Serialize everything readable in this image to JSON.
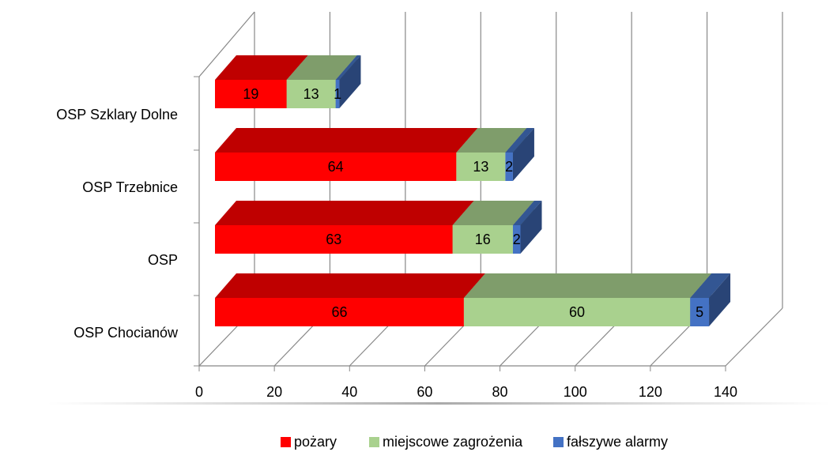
{
  "chart_data": {
    "type": "bar3d_stacked_horizontal",
    "categories": [
      "OSP Chocianów",
      "OSP",
      "OSP Trzebnice",
      "OSP Szklary Dolne"
    ],
    "series": [
      {
        "name": "pożary",
        "color": "#ff0000",
        "values": [
          66,
          63,
          64,
          19
        ]
      },
      {
        "name": "miejscowe zagrożenia",
        "color": "#a9d18e",
        "values": [
          60,
          16,
          13,
          13
        ]
      },
      {
        "name": "fałszywe alarmy",
        "color": "#4472c4",
        "values": [
          5,
          2,
          2,
          1
        ]
      }
    ],
    "xlim": [
      0,
      140
    ],
    "xticks": [
      0,
      20,
      40,
      60,
      80,
      100,
      120,
      140
    ],
    "grid": true,
    "legend": "bottom"
  }
}
